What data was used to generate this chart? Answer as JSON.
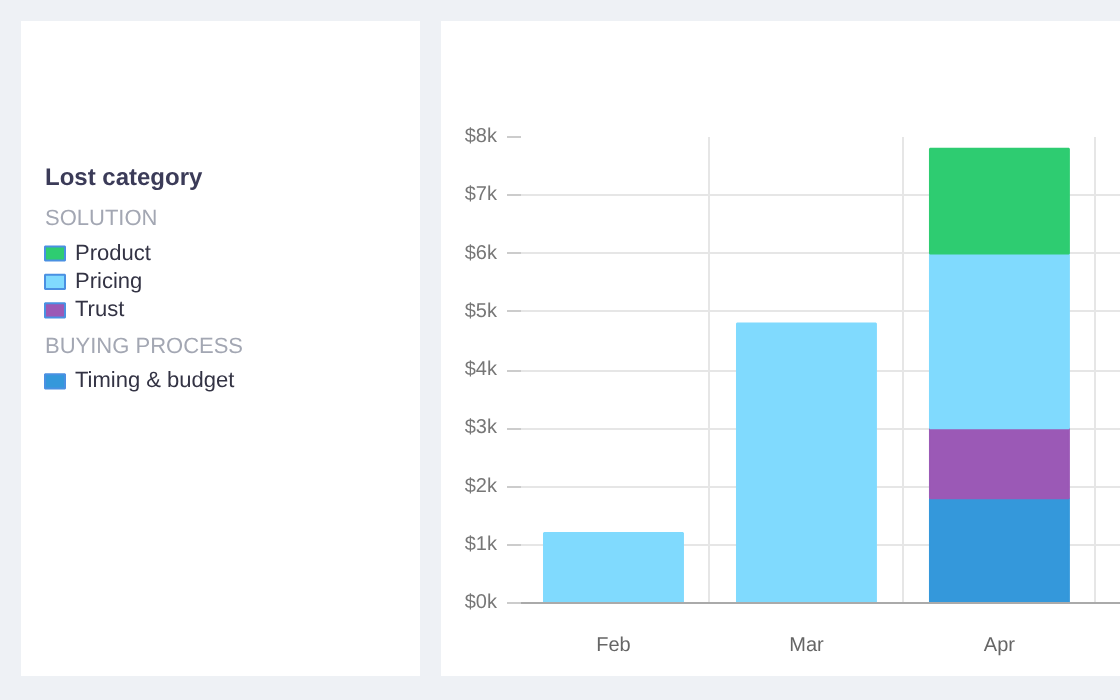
{
  "chart_data": {
    "type": "bar",
    "legend_title": "Lost category",
    "categories": [
      "Feb",
      "Mar",
      "Apr"
    ],
    "stacked": true,
    "series": [
      {
        "name": "Timing & budget",
        "color": "#3498db",
        "values": [
          0,
          0,
          1800
        ]
      },
      {
        "name": "Trust",
        "color": "#9b59b6",
        "values": [
          0,
          0,
          1200
        ]
      },
      {
        "name": "Pricing",
        "color": "#80dafe",
        "values": [
          1200,
          4800,
          3000
        ]
      },
      {
        "name": "Product",
        "color": "#2ecc71",
        "values": [
          0,
          0,
          1800
        ]
      }
    ],
    "annotations": [
      "SOLUTION",
      "BUYING PROCESS"
    ],
    "ylim": [
      0,
      8000
    ],
    "yticks": [
      {
        "value": 0,
        "label": "$0k"
      },
      {
        "value": 1000,
        "label": "$1k"
      },
      {
        "value": 2000,
        "label": "$2k"
      },
      {
        "value": 3000,
        "label": "$3k"
      },
      {
        "value": 4000,
        "label": "$4k"
      },
      {
        "value": 5000,
        "label": "$5k"
      },
      {
        "value": 6000,
        "label": "$6k"
      },
      {
        "value": 7000,
        "label": "$7k"
      },
      {
        "value": 8000,
        "label": "$8k"
      }
    ],
    "grid": true,
    "legend": "left"
  }
}
